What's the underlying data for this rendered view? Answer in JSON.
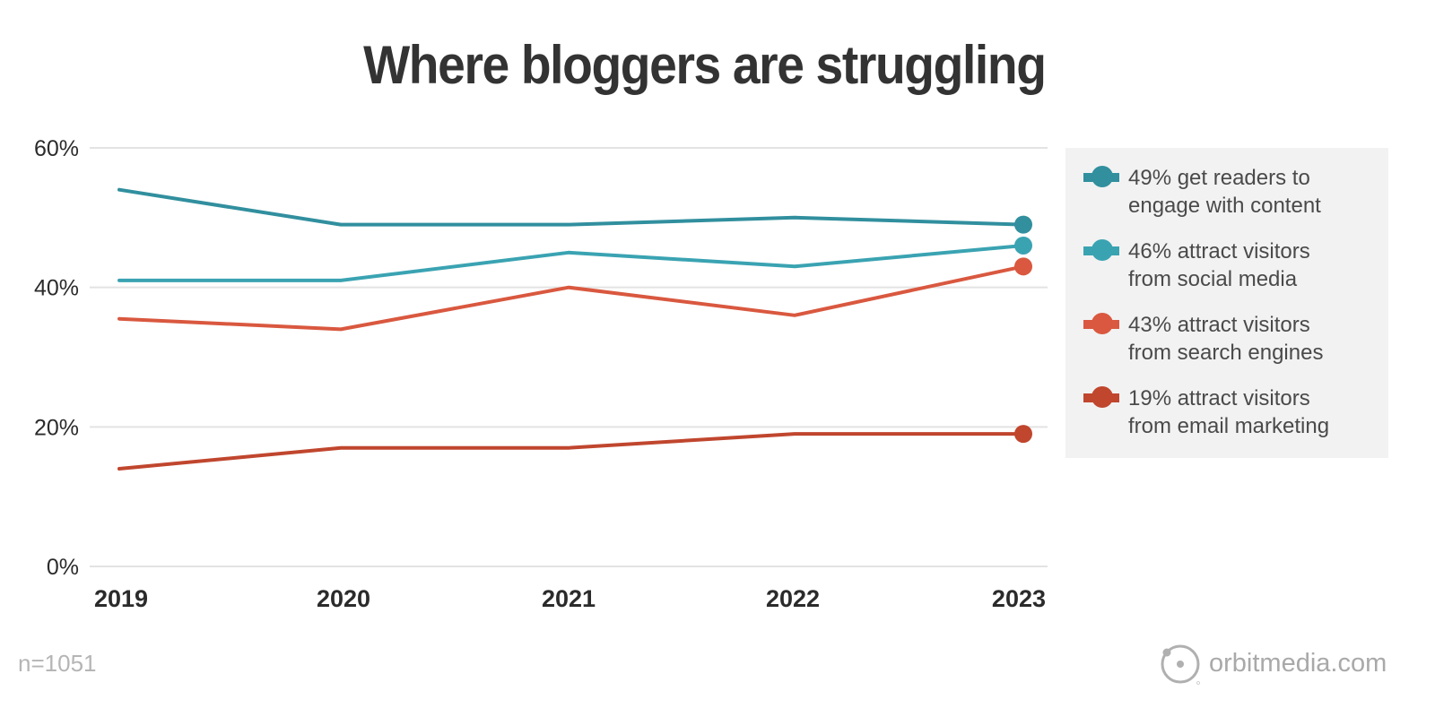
{
  "title": "Where bloggers are struggling",
  "footnote": "n=1051",
  "brand": {
    "name": "orbitmedia.com",
    "icon": "orbit-logo-icon"
  },
  "legend": {
    "items": [
      {
        "label": "49% get readers to engage with content",
        "line1": "49% get readers to",
        "line2": "engage with content",
        "color": "#318F9E"
      },
      {
        "label": "46% attract visitors from social media",
        "line1": "46% attract visitors",
        "line2": "from social media",
        "color": "#3AA3B2"
      },
      {
        "label": "43% attract visitors from search engines",
        "line1": "43% attract visitors",
        "line2": "from search engines",
        "color": "#D9583F"
      },
      {
        "label": "19% attract visitors from email marketing",
        "line1": "19% attract visitors",
        "line2": "from email marketing",
        "color": "#C0462E"
      }
    ]
  },
  "axes": {
    "y_ticks": [
      "0%",
      "20%",
      "40%",
      "60%"
    ],
    "x_ticks": [
      "2019",
      "2020",
      "2021",
      "2022",
      "2023"
    ]
  },
  "chart_data": {
    "type": "line",
    "title": "Where bloggers are struggling",
    "xlabel": "",
    "ylabel": "",
    "x": [
      "2019",
      "2020",
      "2021",
      "2022",
      "2023"
    ],
    "ylim": [
      0,
      60
    ],
    "y_ticks": [
      0,
      20,
      40,
      60
    ],
    "grid": true,
    "legend_position": "right",
    "annotation": "n=1051",
    "series": [
      {
        "name": "49% get readers to engage with content",
        "color": "#318F9E",
        "values": [
          54,
          49,
          49,
          50,
          49
        ]
      },
      {
        "name": "46% attract visitors from social media",
        "color": "#3AA3B2",
        "values": [
          41,
          41,
          45,
          43,
          46
        ]
      },
      {
        "name": "43% attract visitors from search engines",
        "color": "#D9583F",
        "values": [
          35.5,
          34,
          40,
          36,
          43
        ]
      },
      {
        "name": "19% attract visitors from email marketing",
        "color": "#C0462E",
        "values": [
          14,
          17,
          17,
          19,
          19
        ]
      }
    ]
  }
}
